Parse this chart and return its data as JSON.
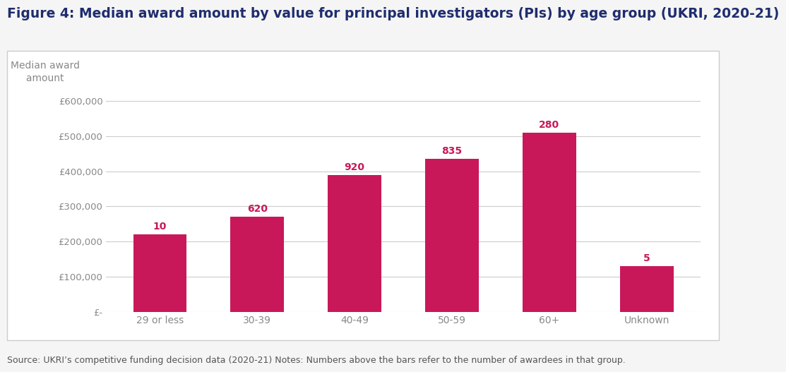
{
  "title": "Figure 4: Median award amount by value for principal investigators (PIs) by age group (UKRI, 2020-21)",
  "categories": [
    "29 or less",
    "30-39",
    "40-49",
    "50-59",
    "60+",
    "Unknown"
  ],
  "values": [
    220000,
    270000,
    390000,
    435000,
    510000,
    130000
  ],
  "counts": [
    10,
    620,
    920,
    835,
    280,
    5
  ],
  "bar_color": "#c8185a",
  "ylim": [
    0,
    650000
  ],
  "yticks": [
    0,
    100000,
    200000,
    300000,
    400000,
    500000,
    600000
  ],
  "ytick_labels": [
    "£-",
    "£100,000",
    "£200,000",
    "£300,000",
    "£400,000",
    "£500,000",
    "£600,000"
  ],
  "title_color": "#1f2d6e",
  "title_fontsize": 13.5,
  "tick_color": "#888888",
  "count_color": "#c8185a",
  "grid_color": "#cccccc",
  "background_color": "#f5f5f5",
  "panel_background": "#ffffff",
  "border_color": "#cccccc",
  "ylabel_text": "Median award\n     amount",
  "ylabel_color": "#888888",
  "ylabel_fontsize": 10,
  "source_text": "Source: UKRI’s competitive funding decision data (2020-21) Notes: Numbers above the bars refer to the number of awardees in that group.",
  "source_fontsize": 9,
  "source_color": "#555555"
}
